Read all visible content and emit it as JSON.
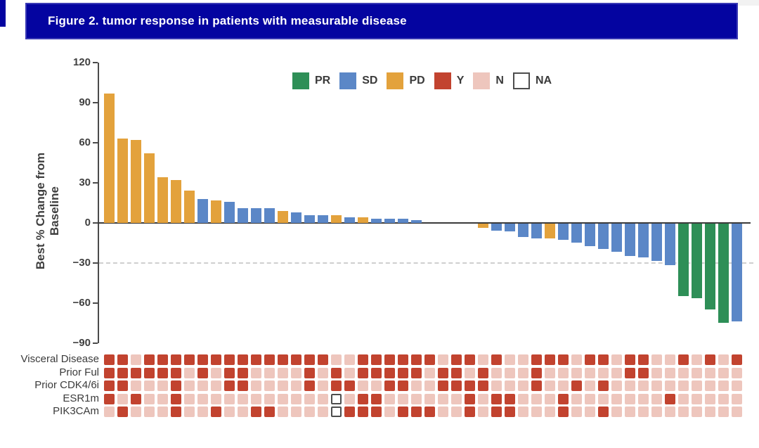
{
  "banner": {
    "title": "Figure 2. tumor response in patients with measurable disease"
  },
  "colors": {
    "PR": "#2e8f57",
    "SD": "#5b87c7",
    "PD": "#e3a23c",
    "Y": "#c2432f",
    "N": "#eec6bd",
    "NA": "#ffffff",
    "na_border": "#4d4d4d",
    "banner_bg": "#0404a0"
  },
  "chart_data": {
    "type": "bar",
    "title": "",
    "xlabel": "",
    "ylabel": "Best % Change from Baseline",
    "ylim": [
      -90,
      120
    ],
    "yticks": [
      120,
      90,
      60,
      30,
      0,
      -30,
      -60,
      -90
    ],
    "reference_line_y": -30,
    "grid": false,
    "legend_position": "top-center",
    "legend": [
      {
        "label": "PR",
        "color_key": "PR"
      },
      {
        "label": "SD",
        "color_key": "SD"
      },
      {
        "label": "PD",
        "color_key": "PD"
      },
      {
        "label": "Y",
        "color_key": "Y"
      },
      {
        "label": "N",
        "color_key": "N"
      },
      {
        "label": "NA",
        "color_key": "NA"
      }
    ],
    "values": [
      97,
      63,
      62,
      52,
      34,
      32,
      24,
      18,
      17,
      16,
      11,
      11,
      11,
      9,
      8,
      6,
      6,
      6,
      4,
      4,
      3,
      3,
      3,
      2,
      0,
      0,
      0,
      0,
      -3,
      -5,
      -6,
      -10,
      -11,
      -11,
      -12,
      -14,
      -17,
      -19,
      -21,
      -24,
      -25,
      -28,
      -31,
      -54,
      -56,
      -64,
      -74,
      -73
    ],
    "response": [
      "PD",
      "PD",
      "PD",
      "PD",
      "PD",
      "PD",
      "PD",
      "SD",
      "PD",
      "SD",
      "SD",
      "SD",
      "SD",
      "PD",
      "SD",
      "SD",
      "SD",
      "PD",
      "SD",
      "PD",
      "SD",
      "SD",
      "SD",
      "SD",
      "SD",
      "SD",
      "SD",
      "SD",
      "PD",
      "SD",
      "SD",
      "SD",
      "SD",
      "PD",
      "SD",
      "SD",
      "SD",
      "SD",
      "SD",
      "SD",
      "SD",
      "SD",
      "SD",
      "PR",
      "PR",
      "PR",
      "PR",
      "SD"
    ],
    "heatmap_rows": [
      {
        "label": "Visceral Disease",
        "values": [
          "Y",
          "Y",
          "N",
          "Y",
          "Y",
          "Y",
          "Y",
          "Y",
          "Y",
          "Y",
          "Y",
          "Y",
          "Y",
          "Y",
          "Y",
          "Y",
          "Y",
          "N",
          "N",
          "Y",
          "Y",
          "Y",
          "Y",
          "Y",
          "Y",
          "N",
          "Y",
          "Y",
          "N",
          "Y",
          "N",
          "N",
          "Y",
          "Y",
          "Y",
          "N",
          "Y",
          "Y",
          "N",
          "Y",
          "Y",
          "N",
          "N",
          "Y",
          "N",
          "Y",
          "N",
          "Y"
        ]
      },
      {
        "label": "Prior Ful",
        "values": [
          "Y",
          "Y",
          "Y",
          "Y",
          "Y",
          "Y",
          "N",
          "Y",
          "N",
          "Y",
          "Y",
          "N",
          "N",
          "N",
          "N",
          "Y",
          "N",
          "Y",
          "N",
          "Y",
          "Y",
          "Y",
          "Y",
          "Y",
          "N",
          "Y",
          "Y",
          "N",
          "Y",
          "N",
          "N",
          "N",
          "Y",
          "N",
          "N",
          "N",
          "N",
          "N",
          "N",
          "Y",
          "Y",
          "N",
          "N",
          "N",
          "N",
          "N",
          "N",
          "N"
        ]
      },
      {
        "label": "Prior CDK4/6i",
        "values": [
          "Y",
          "Y",
          "N",
          "N",
          "N",
          "Y",
          "N",
          "N",
          "N",
          "Y",
          "Y",
          "N",
          "N",
          "N",
          "N",
          "Y",
          "N",
          "Y",
          "Y",
          "N",
          "N",
          "Y",
          "Y",
          "N",
          "N",
          "Y",
          "Y",
          "Y",
          "Y",
          "N",
          "N",
          "N",
          "Y",
          "N",
          "N",
          "Y",
          "N",
          "Y",
          "N",
          "N",
          "N",
          "N",
          "N",
          "N",
          "N",
          "N",
          "N",
          "N"
        ]
      },
      {
        "label": "ESR1m",
        "values": [
          "Y",
          "N",
          "Y",
          "N",
          "N",
          "Y",
          "N",
          "N",
          "N",
          "N",
          "N",
          "N",
          "N",
          "N",
          "N",
          "N",
          "N",
          "NA",
          "N",
          "Y",
          "Y",
          "N",
          "N",
          "N",
          "N",
          "N",
          "N",
          "Y",
          "N",
          "Y",
          "Y",
          "N",
          "N",
          "N",
          "Y",
          "N",
          "N",
          "N",
          "N",
          "N",
          "N",
          "N",
          "Y",
          "N",
          "N",
          "N",
          "N",
          "N"
        ]
      },
      {
        "label": "PIK3CAm",
        "values": [
          "N",
          "Y",
          "N",
          "N",
          "N",
          "Y",
          "N",
          "N",
          "Y",
          "N",
          "N",
          "Y",
          "Y",
          "N",
          "N",
          "N",
          "N",
          "NA",
          "Y",
          "Y",
          "Y",
          "N",
          "Y",
          "Y",
          "Y",
          "N",
          "N",
          "Y",
          "N",
          "Y",
          "Y",
          "N",
          "N",
          "N",
          "Y",
          "N",
          "N",
          "Y",
          "N",
          "N",
          "N",
          "N",
          "N",
          "N",
          "N",
          "N",
          "N",
          "N"
        ]
      }
    ]
  }
}
